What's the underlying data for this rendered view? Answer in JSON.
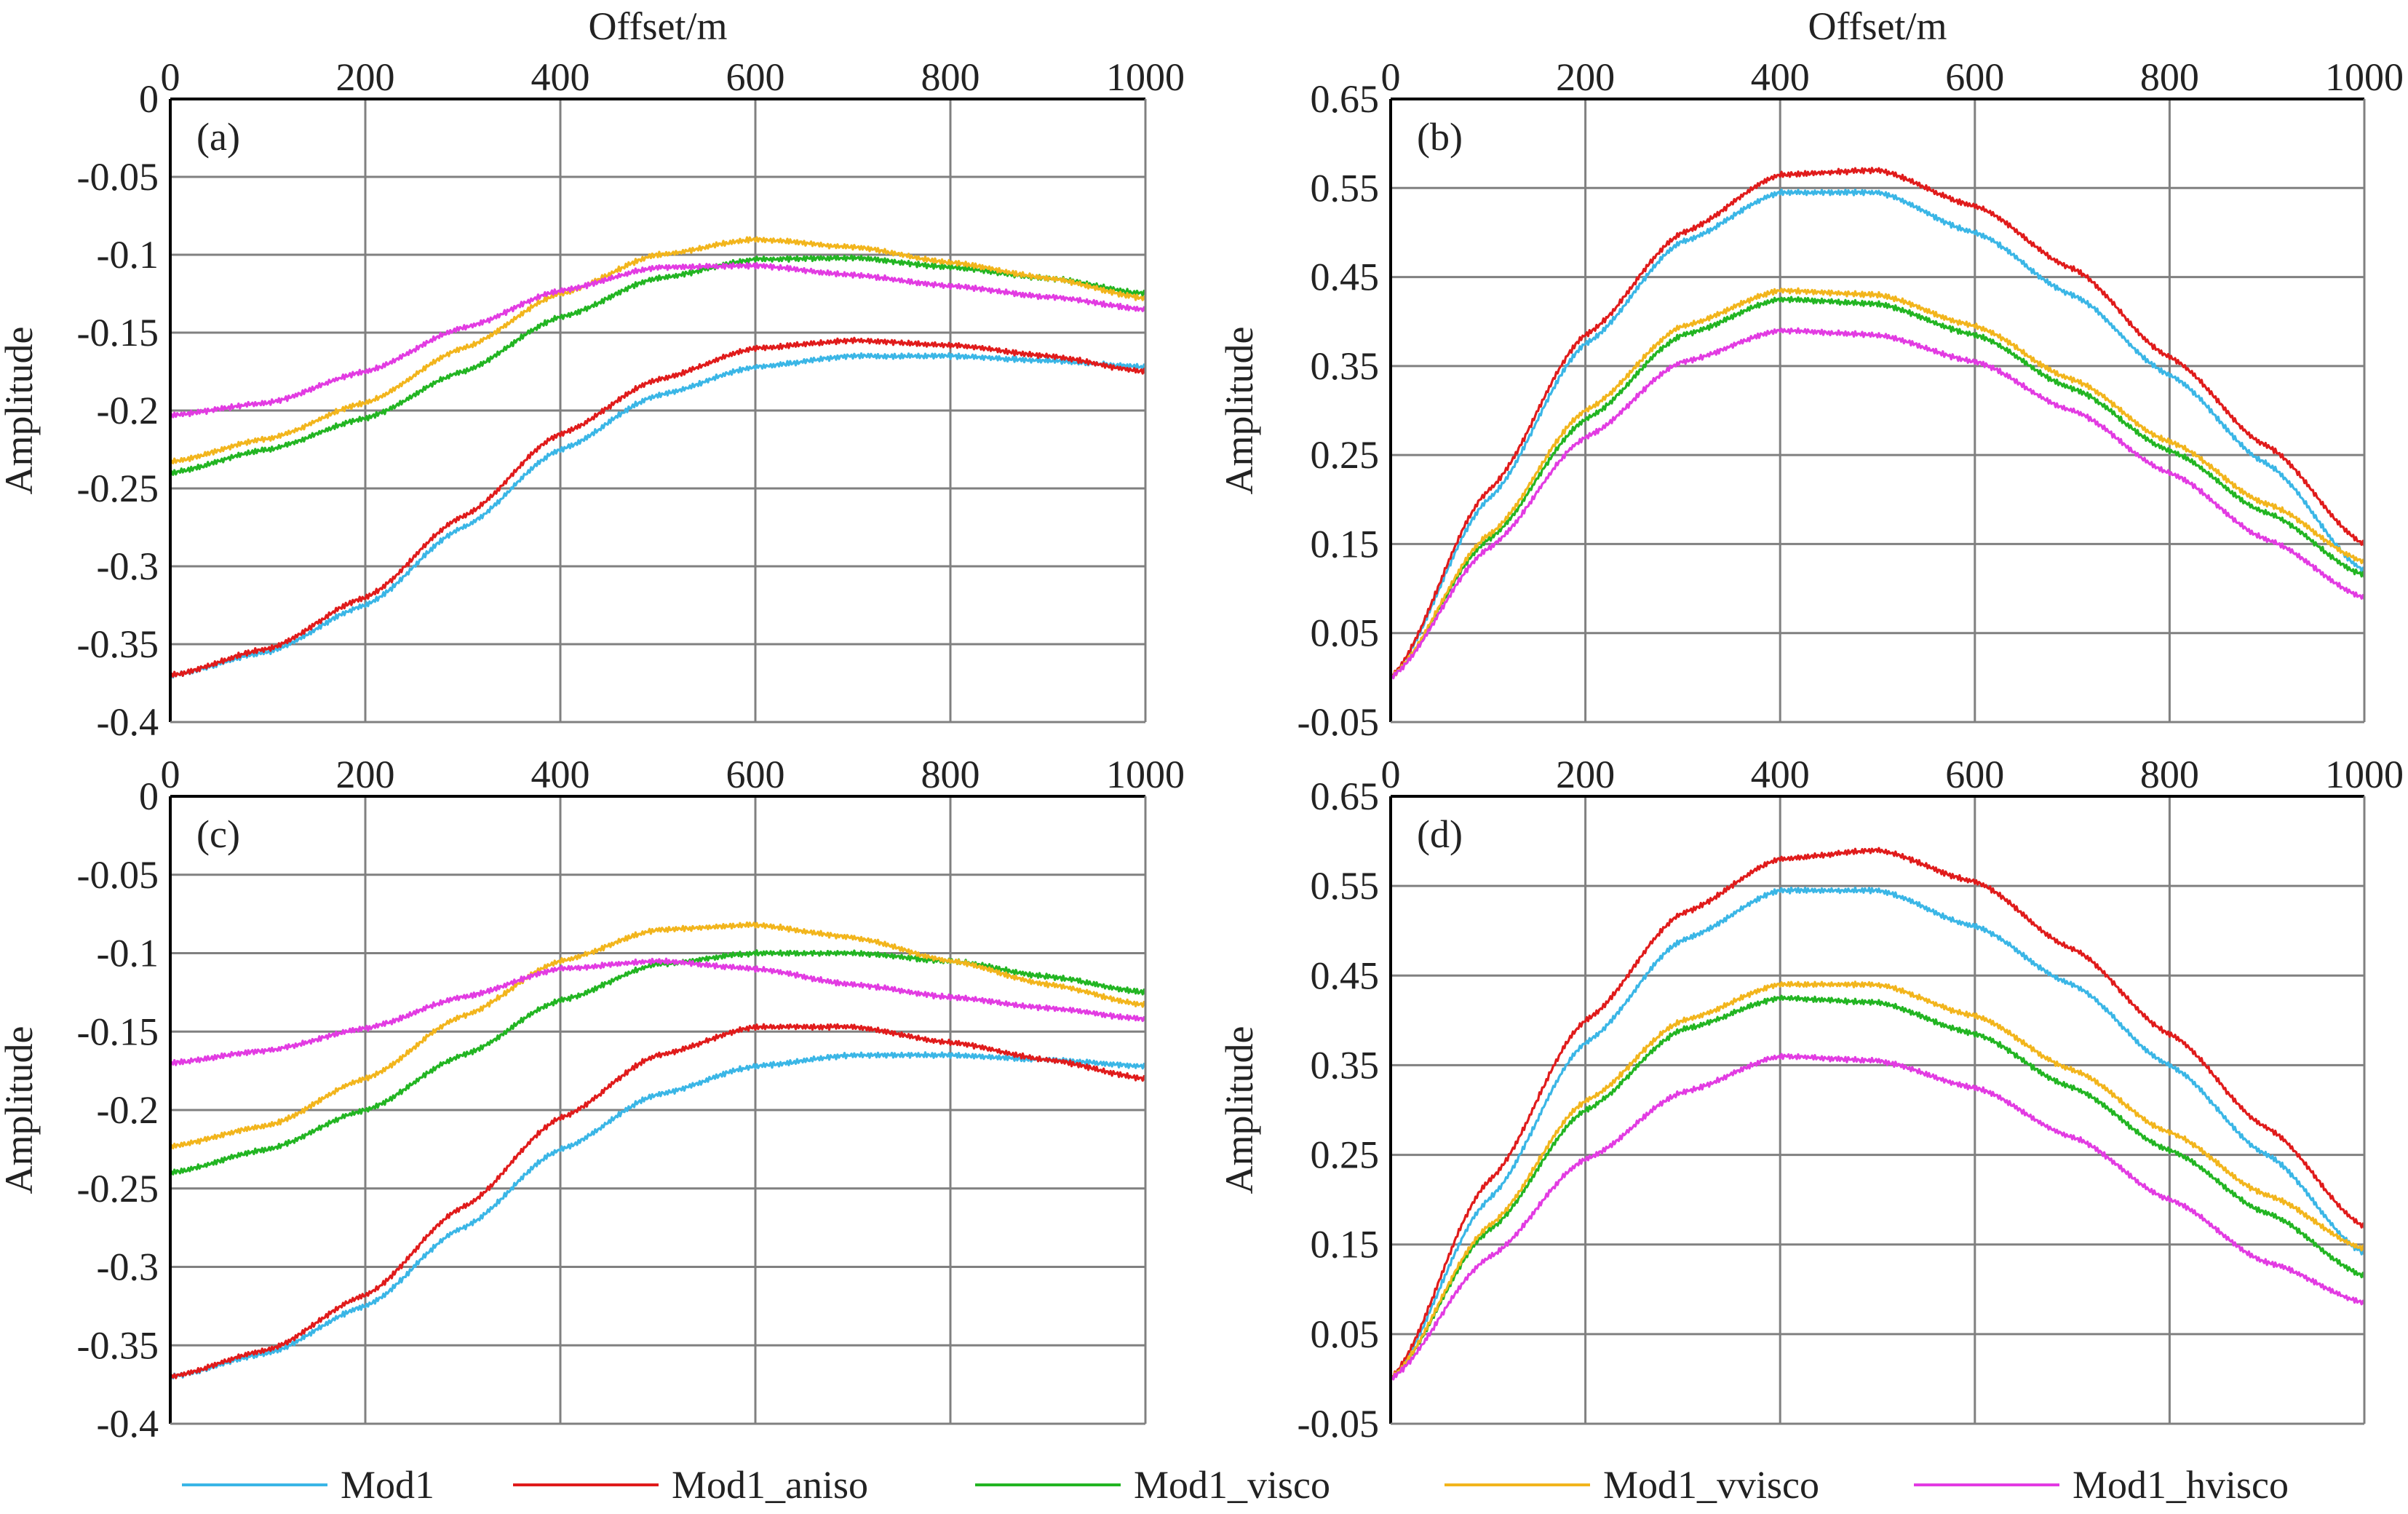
{
  "colors": {
    "Mod1": "#3ab6e6",
    "Mod1_aniso": "#e01b1b",
    "Mod1_visco": "#22b522",
    "Mod1_vvisco": "#f2b51c",
    "Mod1_hvisco": "#e23be2",
    "grid": "#808080",
    "frame": "#000000"
  },
  "legend": {
    "items": [
      "Mod1",
      "Mod1_aniso",
      "Mod1_visco",
      "Mod1_vvisco",
      "Mod1_hvisco"
    ]
  },
  "chart_data": [
    {
      "type": "line",
      "panel_label": "(a)",
      "xlabel": "Offset/m",
      "ylabel": "Amplitude",
      "xlim": [
        0,
        1000
      ],
      "ylim": [
        -0.4,
        0
      ],
      "xticks": [
        "0",
        "200",
        "400",
        "600",
        "800",
        "1000"
      ],
      "yticks": [
        "0",
        "-0.05",
        "-0.1",
        "-0.15",
        "-0.2",
        "-0.25",
        "-0.3",
        "-0.35",
        "-0.4"
      ],
      "x": [
        0,
        100,
        200,
        300,
        400,
        500,
        600,
        700,
        800,
        900,
        1000
      ],
      "series": [
        {
          "name": "Mod1",
          "values": [
            -0.37,
            -0.355,
            -0.325,
            -0.275,
            -0.225,
            -0.19,
            -0.172,
            -0.165,
            -0.165,
            -0.168,
            -0.172
          ]
        },
        {
          "name": "Mod1_aniso",
          "values": [
            -0.37,
            -0.353,
            -0.32,
            -0.268,
            -0.215,
            -0.18,
            -0.16,
            -0.155,
            -0.158,
            -0.165,
            -0.175
          ]
        },
        {
          "name": "Mod1_visco",
          "values": [
            -0.24,
            -0.225,
            -0.205,
            -0.175,
            -0.14,
            -0.115,
            -0.103,
            -0.102,
            -0.108,
            -0.115,
            -0.125
          ]
        },
        {
          "name": "Mod1_vvisco",
          "values": [
            -0.233,
            -0.218,
            -0.195,
            -0.16,
            -0.125,
            -0.1,
            -0.09,
            -0.095,
            -0.105,
            -0.115,
            -0.128
          ]
        },
        {
          "name": "Mod1_hvisco",
          "values": [
            -0.203,
            -0.195,
            -0.175,
            -0.147,
            -0.123,
            -0.108,
            -0.107,
            -0.113,
            -0.12,
            -0.127,
            -0.135
          ]
        }
      ]
    },
    {
      "type": "line",
      "panel_label": "(b)",
      "xlabel": "Offset/m",
      "ylabel": "Amplitude",
      "xlim": [
        0,
        1000
      ],
      "ylim": [
        -0.05,
        0.65
      ],
      "xticks": [
        "0",
        "200",
        "400",
        "600",
        "800",
        "1000"
      ],
      "yticks": [
        "0.65",
        "0.55",
        "0.45",
        "0.35",
        "0.25",
        "0.15",
        "0.05",
        "-0.05"
      ],
      "x": [
        0,
        100,
        200,
        300,
        400,
        500,
        600,
        700,
        800,
        900,
        1000
      ],
      "series": [
        {
          "name": "Mod1",
          "values": [
            0.0,
            0.2,
            0.375,
            0.49,
            0.545,
            0.545,
            0.5,
            0.43,
            0.34,
            0.24,
            0.12
          ]
        },
        {
          "name": "Mod1_aniso",
          "values": [
            0.0,
            0.21,
            0.385,
            0.5,
            0.565,
            0.57,
            0.53,
            0.46,
            0.36,
            0.26,
            0.15
          ]
        },
        {
          "name": "Mod1_visco",
          "values": [
            0.0,
            0.155,
            0.29,
            0.385,
            0.425,
            0.42,
            0.385,
            0.325,
            0.255,
            0.185,
            0.115
          ]
        },
        {
          "name": "Mod1_vvisco",
          "values": [
            0.0,
            0.16,
            0.3,
            0.395,
            0.435,
            0.43,
            0.395,
            0.335,
            0.265,
            0.195,
            0.13
          ]
        },
        {
          "name": "Mod1_hvisco",
          "values": [
            0.0,
            0.145,
            0.27,
            0.355,
            0.39,
            0.385,
            0.355,
            0.3,
            0.23,
            0.155,
            0.09
          ]
        }
      ]
    },
    {
      "type": "line",
      "panel_label": "(c)",
      "xlabel": "",
      "ylabel": "Amplitude",
      "xlim": [
        0,
        1000
      ],
      "ylim": [
        -0.4,
        0
      ],
      "xticks": [
        "0",
        "200",
        "400",
        "600",
        "800",
        "1000"
      ],
      "yticks": [
        "0",
        "-0.05",
        "-0.1",
        "-0.15",
        "-0.2",
        "-0.25",
        "-0.3",
        "-0.35",
        "-0.4"
      ],
      "x": [
        0,
        100,
        200,
        300,
        400,
        500,
        600,
        700,
        800,
        900,
        1000
      ],
      "series": [
        {
          "name": "Mod1",
          "values": [
            -0.37,
            -0.355,
            -0.325,
            -0.275,
            -0.225,
            -0.19,
            -0.172,
            -0.165,
            -0.165,
            -0.168,
            -0.172
          ]
        },
        {
          "name": "Mod1_aniso",
          "values": [
            -0.37,
            -0.353,
            -0.318,
            -0.262,
            -0.205,
            -0.165,
            -0.147,
            -0.147,
            -0.157,
            -0.168,
            -0.18
          ]
        },
        {
          "name": "Mod1_visco",
          "values": [
            -0.24,
            -0.225,
            -0.2,
            -0.165,
            -0.13,
            -0.107,
            -0.1,
            -0.1,
            -0.105,
            -0.115,
            -0.125
          ]
        },
        {
          "name": "Mod1_vvisco",
          "values": [
            -0.223,
            -0.21,
            -0.18,
            -0.14,
            -0.105,
            -0.085,
            -0.082,
            -0.09,
            -0.105,
            -0.12,
            -0.133
          ]
        },
        {
          "name": "Mod1_hvisco",
          "values": [
            -0.17,
            -0.162,
            -0.148,
            -0.128,
            -0.11,
            -0.105,
            -0.11,
            -0.12,
            -0.128,
            -0.135,
            -0.142
          ]
        }
      ]
    },
    {
      "type": "line",
      "panel_label": "(d)",
      "xlabel": "",
      "ylabel": "Amplitude",
      "xlim": [
        0,
        1000
      ],
      "ylim": [
        -0.05,
        0.65
      ],
      "xticks": [
        "0",
        "200",
        "400",
        "600",
        "800",
        "1000"
      ],
      "yticks": [
        "0.65",
        "0.55",
        "0.45",
        "0.35",
        "0.25",
        "0.15",
        "0.05",
        "-0.05"
      ],
      "x": [
        0,
        100,
        200,
        300,
        400,
        500,
        600,
        700,
        800,
        900,
        1000
      ],
      "series": [
        {
          "name": "Mod1",
          "values": [
            0.0,
            0.2,
            0.375,
            0.49,
            0.545,
            0.545,
            0.505,
            0.44,
            0.35,
            0.25,
            0.14
          ]
        },
        {
          "name": "Mod1_aniso",
          "values": [
            0.0,
            0.22,
            0.4,
            0.52,
            0.58,
            0.59,
            0.555,
            0.48,
            0.385,
            0.28,
            0.17
          ]
        },
        {
          "name": "Mod1_visco",
          "values": [
            0.0,
            0.165,
            0.3,
            0.39,
            0.425,
            0.42,
            0.385,
            0.325,
            0.255,
            0.185,
            0.115
          ]
        },
        {
          "name": "Mod1_vvisco",
          "values": [
            0.0,
            0.17,
            0.31,
            0.4,
            0.44,
            0.44,
            0.405,
            0.345,
            0.275,
            0.205,
            0.145
          ]
        },
        {
          "name": "Mod1_hvisco",
          "values": [
            0.0,
            0.135,
            0.245,
            0.32,
            0.36,
            0.355,
            0.325,
            0.27,
            0.2,
            0.13,
            0.085
          ]
        }
      ]
    }
  ]
}
